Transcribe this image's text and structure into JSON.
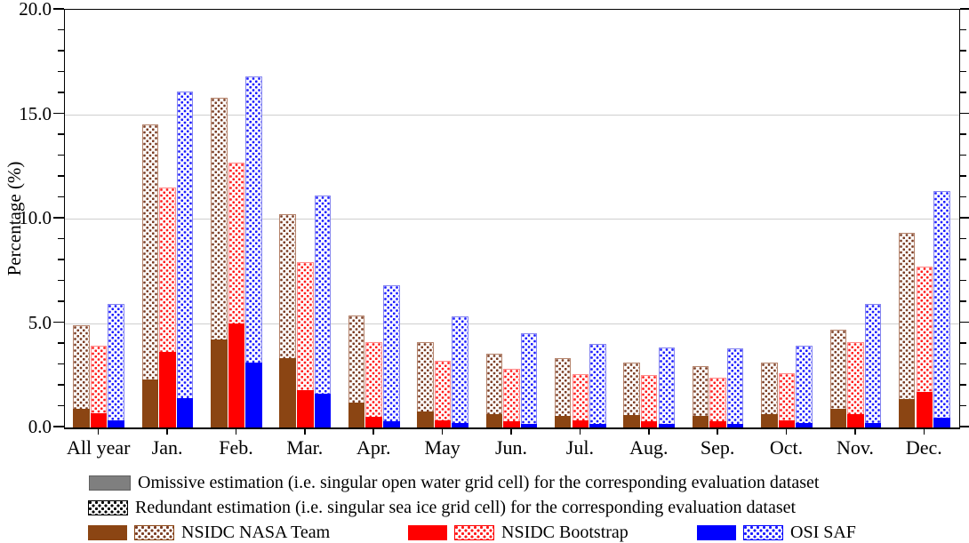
{
  "chart_data": {
    "type": "bar",
    "title": "",
    "ylabel": "Percentage (%)",
    "ylim": [
      0,
      20
    ],
    "y_major_step": 5,
    "y_minor_step": 1,
    "ytick_labels": [
      "0.0",
      "5.0",
      "10.0",
      "15.0",
      "20.0"
    ],
    "grid": "horizontal major lines at 5, 10, 15",
    "legend_position": "below",
    "bar_structure": "stacked: solid omissive segment at bottom, dotted redundant segment above; values below are omissive height and total bar height in percent",
    "categories": [
      "All year",
      "Jan.",
      "Feb.",
      "Mar.",
      "Apr.",
      "May",
      "Jun.",
      "Jul.",
      "Aug.",
      "Sep.",
      "Oct.",
      "Nov.",
      "Dec."
    ],
    "series": [
      {
        "name": "NSIDC NASA Team",
        "color": "#8B4513",
        "dot_color": "#7a3b22",
        "dotted_border_color": "#b5836b",
        "omissive": [
          0.9,
          2.3,
          4.2,
          3.3,
          1.2,
          0.75,
          0.65,
          0.55,
          0.6,
          0.55,
          0.65,
          0.9,
          1.35
        ],
        "total": [
          4.9,
          14.5,
          15.8,
          10.2,
          5.35,
          4.1,
          3.55,
          3.3,
          3.1,
          2.95,
          3.1,
          4.7,
          9.3
        ]
      },
      {
        "name": "NSIDC Bootstrap",
        "color": "#ff0000",
        "dot_color": "#ff1a1a",
        "dotted_border_color": "#ff8a8a",
        "omissive": [
          0.7,
          3.6,
          5.0,
          1.8,
          0.5,
          0.35,
          0.3,
          0.35,
          0.3,
          0.3,
          0.35,
          0.65,
          1.7
        ],
        "total": [
          3.9,
          11.5,
          12.7,
          7.9,
          4.1,
          3.2,
          2.8,
          2.55,
          2.5,
          2.4,
          2.6,
          4.1,
          7.7
        ]
      },
      {
        "name": "OSI SAF",
        "color": "#0000ff",
        "dot_color": "#1a1aff",
        "dotted_border_color": "#8585f0",
        "omissive": [
          0.35,
          1.4,
          3.1,
          1.6,
          0.3,
          0.2,
          0.15,
          0.15,
          0.15,
          0.15,
          0.2,
          0.2,
          0.45
        ],
        "total": [
          5.9,
          16.1,
          16.8,
          11.1,
          6.8,
          5.3,
          4.5,
          4.0,
          3.85,
          3.8,
          3.9,
          5.9,
          11.3
        ]
      }
    ],
    "legend": {
      "omissive_label": "Omissive estimation (i.e. singular open water grid cell) for the corresponding evaluation dataset",
      "redundant_label": "Redundant estimation (i.e. singular sea ice grid cell) for the corresponding evaluation dataset",
      "omissive_swatch_color": "#7f7f7f"
    }
  }
}
